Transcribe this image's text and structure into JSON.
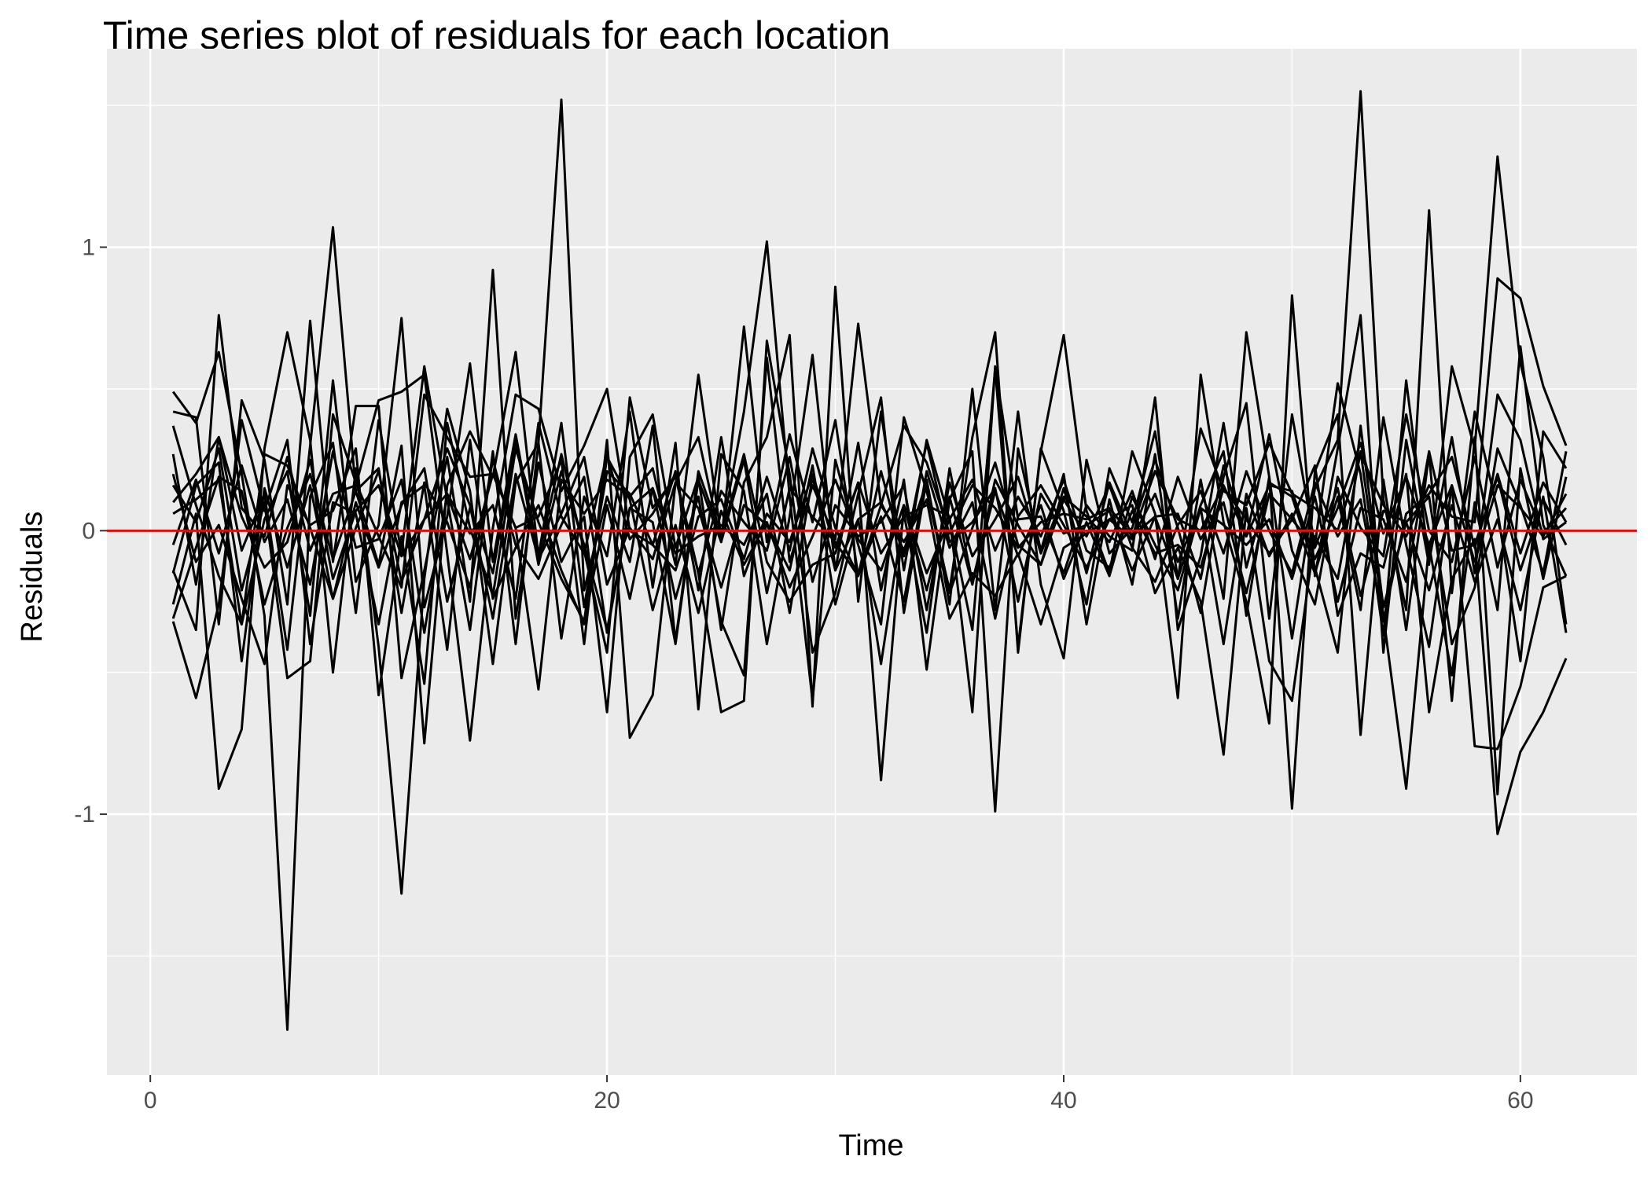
{
  "chart_data": {
    "type": "line",
    "title": "Time series plot of residuals for each location",
    "xlabel": "Time",
    "ylabel": "Residuals",
    "xlim": [
      -1.9,
      65.1
    ],
    "ylim": [
      -1.92,
      1.7
    ],
    "x_ticks": [
      0,
      20,
      40,
      60
    ],
    "y_ticks": [
      -1,
      0,
      1
    ],
    "x_tick_labels": [
      "0",
      "20",
      "40",
      "60"
    ],
    "y_tick_labels": [
      "-1",
      "0",
      "1"
    ],
    "grid": true,
    "panel_background": "#ebebeb",
    "grid_color": "#ffffff",
    "line_color": "#000000",
    "reference_line": {
      "y": 0,
      "color": "#ff0000"
    },
    "x": [
      1,
      2,
      3,
      4,
      5,
      6,
      7,
      8,
      9,
      10,
      11,
      12,
      13,
      14,
      15,
      16,
      17,
      18,
      19,
      20,
      21,
      22,
      23,
      24,
      25,
      26,
      27,
      28,
      29,
      30,
      31,
      32,
      33,
      34,
      35,
      36,
      37,
      38,
      39,
      40,
      41,
      42,
      43,
      44,
      45,
      46,
      47,
      48,
      49,
      50,
      51,
      52,
      53,
      54,
      55,
      56,
      57,
      58,
      59,
      60,
      61,
      62
    ],
    "series": [
      {
        "values": [
          0.49,
          0.38,
          0.63,
          0.2,
          -0.3,
          -1.76,
          0.12,
          0.31,
          -0.29,
          0.39,
          -0.08,
          0.58,
          0.11,
          -0.35,
          0.28,
          -0.4,
          0.31,
          1.52,
          -0.21,
          0.12,
          -0.11,
          0.37,
          -0.39,
          0.21,
          -0.02,
          0.42,
          1.02,
          0.12,
          -0.6,
          0.25,
          -0.05,
          -0.33,
          0.4,
          0.14,
          -0.21,
          0.33,
          0.7,
          -0.43,
          0.29,
          0.07,
          -0.26,
          0.22,
          0.03,
          0.35,
          -0.17,
          0.09,
          0.28,
          -0.3,
          0.19,
          -0.38,
          0.15,
          0.32,
          1.55,
          0.11,
          -0.28,
          1.13,
          -0.22,
          0.42,
          0.07,
          -0.46,
          0.35,
          0.22
        ]
      },
      {
        "values": [
          -0.26,
          0.06,
          -0.91,
          -0.7,
          0.29,
          0.7,
          0.32,
          -0.5,
          0.22,
          -0.41,
          -1.28,
          -0.17,
          0.43,
          0.14,
          -0.47,
          0.17,
          0.31,
          -0.38,
          0.12,
          -0.09,
          0.42,
          -0.2,
          0.31,
          -0.63,
          0.27,
          0.14,
          -0.4,
          0.05,
          0.62,
          -0.14,
          0.31,
          -0.21,
          0.18,
          -0.49,
          0.11,
          0.28,
          -0.99,
          0.29,
          -0.07,
          0.2,
          -0.33,
          0.11,
          -0.19,
          0.27,
          -0.31,
          0.18,
          -0.24,
          0.7,
          0.19,
          -0.98,
          0.21,
          0.41,
          -0.72,
          0.18,
          -0.35,
          0.27,
          -0.6,
          0.33,
          -0.93,
          0.22,
          -0.17,
          0.19
        ]
      },
      {
        "values": [
          0.42,
          0.4,
          -0.33,
          0.46,
          0.25,
          -0.26,
          0.74,
          -0.11,
          0.44,
          0.44,
          -0.52,
          -0.14,
          0.26,
          -0.25,
          0.92,
          -0.31,
          0.24,
          -0.11,
          0.05,
          -0.64,
          0.26,
          0.41,
          -0.06,
          0.19,
          -0.35,
          0.17,
          0.33,
          0.69,
          -0.62,
          0.86,
          -0.25,
          0.42,
          -0.14,
          0.32,
          0.04,
          -0.35,
          0.57,
          -0.41,
          0.28,
          0.69,
          0.07,
          -0.15,
          0.28,
          0.06,
          -0.59,
          0.55,
          0.03,
          -0.25,
          -0.68,
          0.83,
          -0.16,
          0.29,
          0.76,
          -0.43,
          0.32,
          -0.12,
          0.58,
          0.29,
          1.32,
          0.59,
          0.26,
          -0.33
        ]
      },
      {
        "values": [
          0.1,
          0.2,
          0.33,
          -0.07,
          0.13,
          -0.42,
          0.3,
          1.07,
          0.14,
          -0.12,
          0.3,
          -0.75,
          0.16,
          0.35,
          0.19,
          0.63,
          -0.09,
          0.38,
          -0.27,
          0.21,
          0.13,
          -0.05,
          0.21,
          -0.21,
          0.33,
          -0.16,
          0.06,
          -0.04,
          0.2,
          -0.06,
          0.17,
          -0.88,
          0.09,
          -0.21,
          0.12,
          -0.19,
          0.18,
          0.02,
          -0.12,
          0.15,
          -0.15,
          0.17,
          -0.02,
          0.05,
          -0.17,
          0.36,
          0.14,
          0.09,
          0.31,
          0.13,
          0.08,
          0.0,
          0.27,
          0.09,
          -0.02,
          0.16,
          0.05,
          0.03,
          0.89,
          0.82,
          0.51,
          0.3
        ]
      },
      {
        "values": [
          -0.14,
          -0.35,
          0.76,
          0.08,
          -0.02,
          0.26,
          -0.07,
          0.13,
          0.16,
          0.46,
          0.49,
          0.55,
          -0.08,
          -0.74,
          0.01,
          0.48,
          0.43,
          0.14,
          0.3,
          0.5,
          0.0,
          -0.05,
          -0.14,
          0.12,
          -0.32,
          -0.51,
          0.61,
          -0.11,
          0.16,
          -0.03,
          0.73,
          0.09,
          -0.04,
          0.11,
          -0.31,
          -0.15,
          -0.23,
          -0.08,
          -0.33,
          -0.06,
          -0.01,
          0.04,
          0.09,
          -0.22,
          -0.06,
          -0.25,
          -0.79,
          0.08,
          -0.46,
          -0.6,
          -0.02,
          -0.17,
          0.28,
          -0.3,
          -0.91,
          -0.05,
          -0.51,
          0.1,
          -0.28,
          0.65,
          0.02,
          -0.16
        ]
      },
      {
        "values": [
          0.2,
          -0.11,
          0.02,
          -0.24,
          -0.47,
          0.16,
          0.02,
          0.07,
          0.29,
          -0.58,
          -0.02,
          -0.54,
          0.38,
          0.01,
          -0.23,
          0.29,
          0.03,
          -0.17,
          -0.32,
          0.26,
          0.11,
          -0.28,
          0.02,
          -0.29,
          0.07,
          -0.12,
          0.03,
          -0.2,
          -0.02,
          0.18,
          -0.03,
          -0.14,
          0.09,
          -0.15,
          0.04,
          0.18,
          -0.07,
          0.12,
          -0.02,
          0.18,
          -0.07,
          -0.13,
          0.07,
          -0.08,
          -0.05,
          -0.13,
          0.15,
          0.04,
          -0.08,
          0.04,
          0.23,
          -0.3,
          -0.08,
          -0.13,
          0.2,
          -0.64,
          -0.17,
          -0.03,
          -1.07,
          -0.78,
          -0.64,
          -0.45
        ]
      },
      {
        "values": [
          0.37,
          0.09,
          -0.16,
          -0.33,
          0.04,
          0.21,
          -0.3,
          0.53,
          -0.18,
          0.02,
          0.75,
          -0.27,
          0.05,
          0.59,
          -0.11,
          0.34,
          -0.09,
          0.27,
          -0.07,
          -0.43,
          0.47,
          0.08,
          0.19,
          -0.15,
          -0.64,
          -0.6,
          0.67,
          0.2,
          -0.43,
          -0.22,
          0.13,
          0.47,
          -0.29,
          0.18,
          -0.26,
          0.5,
          -0.28,
          0.42,
          -0.19,
          -0.45,
          0.25,
          -0.08,
          0.01,
          0.25,
          0.01,
          -0.29,
          0.19,
          0.45,
          -0.31,
          0.41,
          -0.05,
          0.52,
          0.2,
          -0.37,
          0.53,
          -0.11,
          0.33,
          -0.15,
          0.48,
          0.32,
          -0.03,
          0.03
        ]
      },
      {
        "values": [
          -0.15,
          0.16,
          0.24,
          -0.46,
          0.15,
          -0.13,
          0.16,
          -0.24,
          0.01,
          0.21,
          -0.18,
          0.04,
          0.13,
          -0.1,
          0.2,
          0.01,
          -0.56,
          0.18,
          0.06,
          0.18,
          0.12,
          0.22,
          -0.12,
          0.55,
          -0.02,
          0.27,
          -0.11,
          -0.25,
          -0.12,
          -0.08,
          0.17,
          -0.08,
          0.05,
          0.09,
          0.05,
          -0.64,
          0.58,
          0.04,
          0.05,
          -0.15,
          0.09,
          -0.02,
          -0.07,
          0.47,
          -0.35,
          -0.09,
          0.38,
          -0.13,
          0.17,
          0.12,
          -0.13,
          -0.43,
          0.37,
          -0.27,
          0.03,
          0.12,
          -0.4,
          -0.2,
          0.29,
          0.09,
          -0.15,
          0.28
        ]
      },
      {
        "values": [
          -0.32,
          -0.59,
          -0.26,
          0.39,
          0.07,
          0.32,
          -0.4,
          0.1,
          0.06,
          -0.33,
          0.1,
          0.16,
          -0.42,
          0.32,
          -0.24,
          -0.06,
          0.09,
          -0.14,
          -0.33,
          0.09,
          -0.24,
          0.15,
          -0.08,
          -0.02,
          0.02,
          -0.05,
          0.13,
          -0.29,
          0.19,
          -0.14,
          0.04,
          -0.47,
          0.06,
          -0.36,
          0.22,
          -0.18,
          0.14,
          -0.09,
          0.09,
          -0.17,
          0.03,
          -0.16,
          0.12,
          -0.05,
          -0.21,
          0.08,
          -0.4,
          0.13,
          -0.09,
          0.06,
          -0.15,
          0.12,
          -0.28,
          0.4,
          -0.05,
          -0.41,
          0.16,
          -0.76,
          -0.77,
          -0.55,
          -0.2,
          -0.16
        ]
      },
      {
        "values": [
          0.16,
          0.03,
          0.29,
          -0.21,
          0.1,
          -0.52,
          -0.46,
          0.41,
          0.17,
          -0.02,
          -0.2,
          0.48,
          0.33,
          0.19,
          0.2,
          0.01,
          0.05,
          0.25,
          -0.4,
          0.32,
          -0.73,
          -0.58,
          0.17,
          0.33,
          -0.04,
          0.72,
          -0.04,
          0.34,
          0.03,
          0.39,
          -0.16,
          0.09,
          0.37,
          0.24,
          -0.01,
          0.16,
          0.08,
          -0.06,
          0.03,
          0.06,
          0.04,
          0.08,
          -0.02,
          0.21,
          0.04,
          0.0,
          0.16,
          -0.02,
          0.16,
          0.14,
          -0.1,
          0.08,
          0.31,
          -0.01,
          0.19,
          -0.05,
          0.16,
          -0.11,
          0.16,
          0.08,
          -0.02,
          0.13
        ]
      },
      {
        "values": [
          0.06,
          0.11,
          0.18,
          -0.33,
          0.27,
          0.23,
          0.01,
          -0.24,
          0.1,
          -0.13,
          0.09,
          0.22,
          -0.25,
          0.08,
          -0.15,
          0.32,
          -0.12,
          0.21,
          -0.05,
          -0.35,
          0.08,
          0.15,
          -0.24,
          0.05,
          0.11,
          -0.1,
          0.19,
          -0.07,
          0.29,
          0.01,
          -0.16,
          0.05,
          -0.25,
          0.21,
          -0.06,
          0.1,
          -0.31,
          0.05,
          0.16,
          0.02,
          -0.13,
          0.04,
          -0.03,
          0.13,
          -0.11,
          0.08,
          0.02,
          -0.05,
          0.04,
          -0.17,
          0.12,
          -0.25,
          0.08,
          0.04,
          -0.18,
          0.28,
          -0.07,
          -0.05,
          0.19,
          -0.14,
          0.11,
          -0.05
        ]
      },
      {
        "values": [
          -0.31,
          -0.06,
          0.19,
          0.14,
          -0.26,
          0.01,
          0.2,
          -0.1,
          0.14,
          0.22,
          -0.29,
          0.17,
          0.03,
          -0.2,
          0.25,
          -0.05,
          -0.17,
          0.02,
          0.19,
          -0.36,
          0.08,
          0.03,
          -0.4,
          0.18,
          -0.04,
          0.25,
          -0.22,
          0.15,
          0.05,
          -0.04,
          -0.16,
          0.21,
          -0.09,
          0.31,
          -0.04,
          0.03,
          0.15,
          -0.25,
          0.13,
          -0.01,
          0.02,
          0.07,
          -0.14,
          0.05,
          0.06,
          -0.17,
          0.23,
          -0.02,
          0.34,
          -0.07,
          -0.26,
          0.19,
          0.01,
          -0.09,
          0.41,
          0.0,
          -0.11,
          0.26,
          -0.13,
          0.18,
          -0.01,
          0.08
        ]
      },
      {
        "values": [
          0.27,
          -0.19,
          0.33,
          0.05,
          -0.13,
          -0.04,
          0.25,
          -0.17,
          0.07,
          0.16,
          -0.09,
          0.04,
          0.29,
          0.09,
          -0.31,
          0.2,
          -0.1,
          0.06,
          0.26,
          -0.19,
          0.01,
          -0.1,
          0.17,
          0.08,
          -0.2,
          0.09,
          0.02,
          -0.14,
          0.23,
          -0.26,
          0.04,
          0.1,
          -0.07,
          0.17,
          -0.22,
          0.01,
          0.24,
          -0.05,
          -0.12,
          0.11,
          -0.02,
          0.16,
          -0.06,
          -0.18,
          0.02,
          0.14,
          -0.08,
          0.21,
          0.0,
          -0.15,
          0.17,
          -0.02,
          0.11,
          -0.32,
          0.06,
          0.13,
          0.26,
          -0.06,
          0.2,
          -0.08,
          0.17,
          0.03
        ]
      },
      {
        "values": [
          -0.05,
          0.18,
          -0.08,
          0.23,
          -0.04,
          0.11,
          -0.19,
          0.28,
          -0.06,
          -0.03,
          0.18,
          -0.36,
          0.13,
          -0.01,
          0.09,
          -0.24,
          0.38,
          0.05,
          -0.08,
          0.27,
          -0.03,
          0.06,
          0.2,
          -0.15,
          0.14,
          0.03,
          -0.07,
          0.26,
          -0.18,
          0.09,
          -0.02,
          0.03,
          0.16,
          -0.28,
          0.17,
          -0.09,
          0.04,
          0.19,
          -0.08,
          0.12,
          0.05,
          -0.04,
          0.14,
          -0.1,
          0.19,
          -0.03,
          0.1,
          -0.22,
          0.13,
          0.04,
          -0.06,
          0.15,
          -0.23,
          0.07,
          0.03,
          -0.21,
          0.09,
          -0.18,
          0.04,
          -0.28,
          0.12,
          -0.36
        ]
      }
    ]
  }
}
